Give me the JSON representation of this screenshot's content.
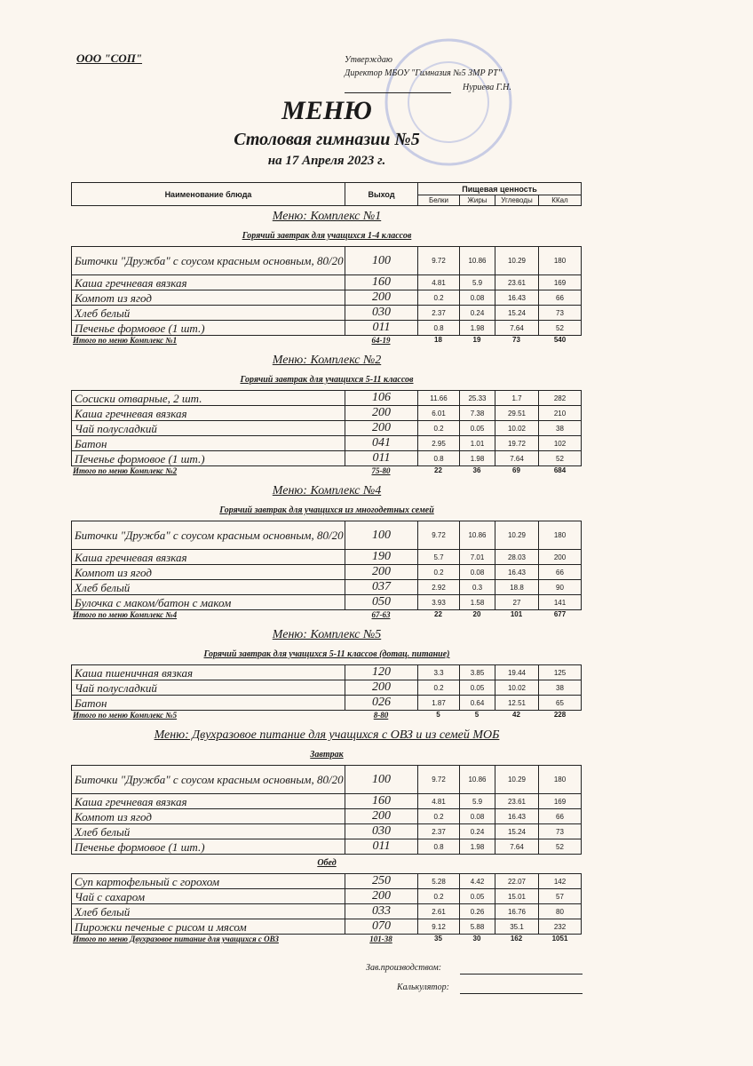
{
  "header": {
    "org": "ООО \"СОП\"",
    "approve": "Утверждаю",
    "director": "Директор МБОУ \"Гимназия №5 ЗМР РТ\"",
    "signer": "Нуриева Г.Н.",
    "title": "МЕНЮ",
    "subtitle": "Столовая гимназии №5",
    "date": "на 17 Апреля 2023 г."
  },
  "table_header": {
    "name": "Наименование блюда",
    "output": "Выход",
    "nutrition": "Пищевая ценность",
    "columns": [
      "Белки",
      "Жиры",
      "Углеводы",
      "ККал"
    ]
  },
  "sections": [
    {
      "title": "Меню: Комплекс №1",
      "groups": [
        {
          "label": "Горячий завтрак для учащихся 1-4 классов",
          "rows": [
            [
              "Биточки  \"Дружба\" с соусом красным основным, 80/20",
              "100",
              "9.72",
              "10.86",
              "10.29",
              "180"
            ],
            [
              "Каша гречневая вязкая",
              "160",
              "4.81",
              "5.9",
              "23.61",
              "169"
            ],
            [
              "Компот из  ягод",
              "200",
              "0.2",
              "0.08",
              "16.43",
              "66"
            ],
            [
              "Хлеб белый",
              "030",
              "2.37",
              "0.24",
              "15.24",
              "73"
            ],
            [
              "Печенье формовое (1 шт.)",
              "011",
              "0.8",
              "1.98",
              "7.64",
              "52"
            ]
          ]
        }
      ],
      "total": [
        "Итого по меню Комплекс №1",
        "64-19",
        "18",
        "19",
        "73",
        "540"
      ]
    },
    {
      "title": "Меню: Комплекс №2",
      "groups": [
        {
          "label": "Горячий завтрак для учащихся 5-11 классов",
          "rows": [
            [
              "Сосиски  отварные, 2 шт.",
              "106",
              "11.66",
              "25.33",
              "1.7",
              "282"
            ],
            [
              "Каша гречневая вязкая",
              "200",
              "6.01",
              "7.38",
              "29.51",
              "210"
            ],
            [
              "Чай полусладкий",
              "200",
              "0.2",
              "0.05",
              "10.02",
              "38"
            ],
            [
              "Батон",
              "041",
              "2.95",
              "1.01",
              "19.72",
              "102"
            ],
            [
              "Печенье формовое (1 шт.)",
              "011",
              "0.8",
              "1.98",
              "7.64",
              "52"
            ]
          ]
        }
      ],
      "total": [
        "Итого по меню Комплекс №2",
        "75-80",
        "22",
        "36",
        "69",
        "684"
      ]
    },
    {
      "title": "Меню: Комплекс №4",
      "groups": [
        {
          "label": "Горячий завтрак для учащихся из многодетных семей",
          "rows": [
            [
              "Биточки  \"Дружба\" с соусом красным основным, 80/20",
              "100",
              "9.72",
              "10.86",
              "10.29",
              "180"
            ],
            [
              "Каша гречневая вязкая",
              "190",
              "5.7",
              "7.01",
              "28.03",
              "200"
            ],
            [
              "Компот из  ягод",
              "200",
              "0.2",
              "0.08",
              "16.43",
              "66"
            ],
            [
              "Хлеб белый",
              "037",
              "2.92",
              "0.3",
              "18.8",
              "90"
            ],
            [
              "Булочка с маком/батон с маком",
              "050",
              "3.93",
              "1.58",
              "27",
              "141"
            ]
          ]
        }
      ],
      "total": [
        "Итого по меню Комплекс №4",
        "67-63",
        "22",
        "20",
        "101",
        "677"
      ]
    },
    {
      "title": "Меню: Комплекс №5",
      "groups": [
        {
          "label": "Горячий завтрак для учащихся 5-11 классов (дотац. питание)",
          "rows": [
            [
              "Каша пшеничная вязкая",
              "120",
              "3.3",
              "3.85",
              "19.44",
              "125"
            ],
            [
              "Чай полусладкий",
              "200",
              "0.2",
              "0.05",
              "10.02",
              "38"
            ],
            [
              "Батон",
              "026",
              "1.87",
              "0.64",
              "12.51",
              "65"
            ]
          ]
        }
      ],
      "total": [
        "Итого по меню Комплекс №5",
        "8-80",
        "5",
        "5",
        "42",
        "228"
      ]
    },
    {
      "title": "Меню: Двухразовое питание для учащихся с ОВЗ и из семей МОБ",
      "groups": [
        {
          "label": "Завтрак",
          "rows": [
            [
              "Биточки  \"Дружба\" с соусом красным основным, 80/20",
              "100",
              "9.72",
              "10.86",
              "10.29",
              "180"
            ],
            [
              "Каша гречневая вязкая",
              "160",
              "4.81",
              "5.9",
              "23.61",
              "169"
            ],
            [
              "Компот из  ягод",
              "200",
              "0.2",
              "0.08",
              "16.43",
              "66"
            ],
            [
              "Хлеб белый",
              "030",
              "2.37",
              "0.24",
              "15.24",
              "73"
            ],
            [
              "Печенье формовое (1 шт.)",
              "011",
              "0.8",
              "1.98",
              "7.64",
              "52"
            ]
          ]
        },
        {
          "label": "Обед",
          "rows": [
            [
              "Суп картофельный с горохом",
              "250",
              "5.28",
              "4.42",
              "22.07",
              "142"
            ],
            [
              "Чай с сахаром",
              "200",
              "0.2",
              "0.05",
              "15.01",
              "57"
            ],
            [
              "Хлеб белый",
              "033",
              "2.61",
              "0.26",
              "16.76",
              "80"
            ],
            [
              "Пирожки печеные с рисом и мясом",
              "070",
              "9.12",
              "5.88",
              "35.1",
              "232"
            ]
          ]
        }
      ],
      "total": [
        "Итого по меню Двухразовое питание для учащихся с ОВЗ",
        "101-38",
        "35",
        "30",
        "162",
        "1051"
      ]
    }
  ],
  "footer": {
    "production": "Зав.производством:",
    "calculator": "Калькулятор:"
  }
}
